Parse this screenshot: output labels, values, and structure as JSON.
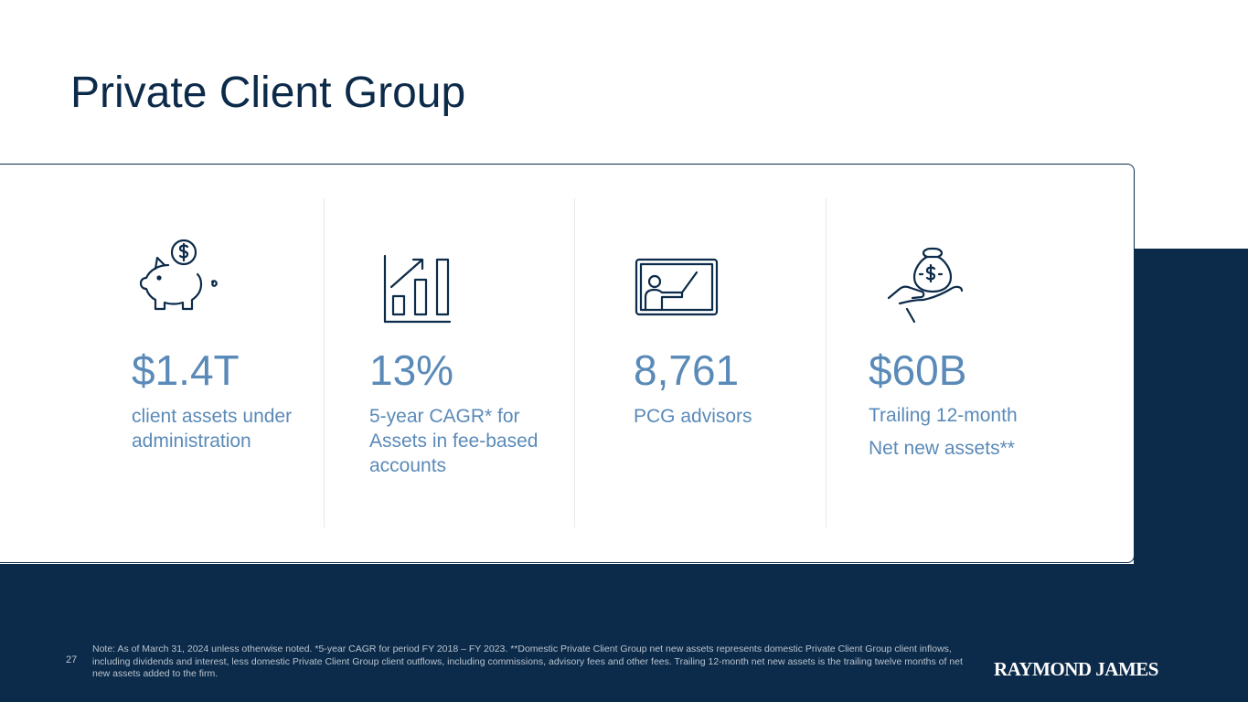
{
  "title": "Private Client Group",
  "stats": [
    {
      "value": "$1.4T",
      "label_lines": [
        "client assets under",
        "administration"
      ],
      "icon": "piggy-bank-icon"
    },
    {
      "value": "13%",
      "label_lines": [
        "5-year CAGR* for",
        "Assets in fee-based",
        "accounts"
      ],
      "icon": "growth-chart-icon"
    },
    {
      "value": "8,761",
      "label_lines": [
        "PCG advisors"
      ],
      "icon": "presenter-board-icon"
    },
    {
      "value": "$60B",
      "label_lines": [
        "Trailing 12-month",
        "Net new assets**"
      ],
      "icon": "money-bag-hand-icon"
    }
  ],
  "footer": {
    "page_number": "27",
    "note": "Note: As of March 31, 2024 unless otherwise noted. *5-year CAGR for period FY 2018 – FY 2023. **Domestic Private Client Group net new assets represents domestic Private Client Group client inflows, including dividends and interest, less domestic Private Client Group client outflows, including commissions, advisory fees and other fees. Trailing 12-month net new assets is the trailing twelve months of net new assets added to the firm.",
    "logo_text": "RAYMOND JAMES"
  },
  "colors": {
    "navy": "#0c2a49",
    "accent_blue": "#5a8ab8",
    "footnote_gray": "#b8c4d0"
  }
}
